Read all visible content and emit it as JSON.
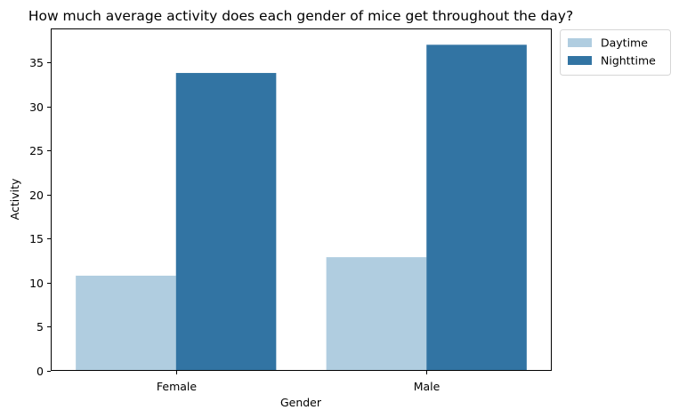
{
  "chart_data": {
    "type": "bar",
    "title": "How much average activity does each gender of mice get throughout the day?",
    "xlabel": "Gender",
    "ylabel": "Activity",
    "categories": [
      "Female",
      "Male"
    ],
    "series": [
      {
        "name": "Daytime",
        "values": [
          10.8,
          12.9
        ],
        "color": "#b0cde0"
      },
      {
        "name": "Nighttime",
        "values": [
          33.8,
          37.0
        ],
        "color": "#3274a3"
      }
    ],
    "ylim": [
      0,
      38.85
    ],
    "yticks": [
      0,
      5,
      10,
      15,
      20,
      25,
      30,
      35
    ],
    "grid": false,
    "legend_position": "outside-top-right"
  }
}
